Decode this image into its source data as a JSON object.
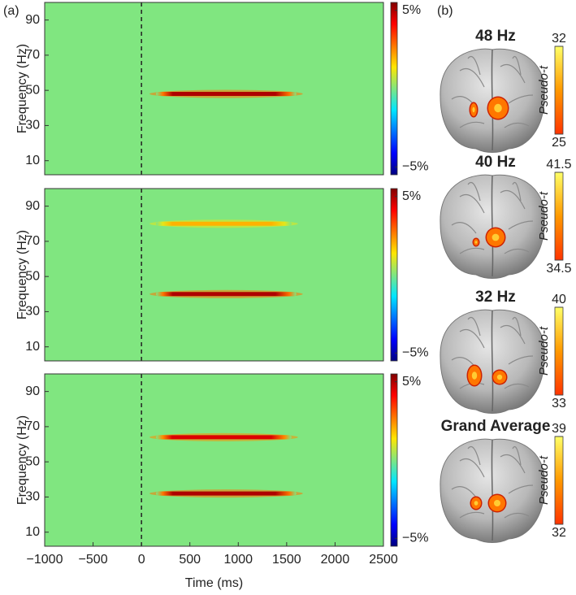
{
  "panel_a_label": "(a)",
  "panel_b_label": "(b)",
  "chart_data": [
    {
      "type": "heatmap",
      "ylabel": "Frequency (Hz)",
      "xlim": [
        -1000,
        2500
      ],
      "ylim": [
        2,
        100
      ],
      "yticks": [
        10,
        30,
        50,
        70,
        90
      ],
      "event_time": 0,
      "clim": [
        -5.5,
        5.5
      ],
      "cticks": [
        {
          "value": 5,
          "label": "5%"
        },
        {
          "value": -5,
          "label": "−5%"
        }
      ],
      "bands": [
        {
          "frequency": 48,
          "start": 150,
          "end": 1600,
          "value": 5
        }
      ]
    },
    {
      "type": "heatmap",
      "ylabel": "Frequency (Hz)",
      "xlim": [
        -1000,
        2500
      ],
      "ylim": [
        2,
        100
      ],
      "yticks": [
        10,
        30,
        50,
        70,
        90
      ],
      "event_time": 0,
      "clim": [
        -5.5,
        5.5
      ],
      "cticks": [
        {
          "value": 5,
          "label": "5%"
        },
        {
          "value": -5,
          "label": "−5%"
        }
      ],
      "bands": [
        {
          "frequency": 80,
          "start": 150,
          "end": 1550,
          "value": 2
        },
        {
          "frequency": 40,
          "start": 150,
          "end": 1600,
          "value": 5
        }
      ]
    },
    {
      "type": "heatmap",
      "ylabel": "Frequency (Hz)",
      "xlabel": "Time (ms)",
      "xlim": [
        -1000,
        2500
      ],
      "ylim": [
        2,
        100
      ],
      "yticks": [
        10,
        30,
        50,
        70,
        90
      ],
      "xticks": [
        {
          "value": -1000,
          "label": "−1000"
        },
        {
          "value": -500,
          "label": "−500"
        },
        0,
        500,
        1000,
        1500,
        2000,
        2500
      ],
      "event_time": 0,
      "clim": [
        -5.5,
        5.5
      ],
      "cticks": [
        {
          "value": 5,
          "label": "5%"
        },
        {
          "value": -5,
          "label": "−5%"
        }
      ],
      "bands": [
        {
          "frequency": 64,
          "start": 150,
          "end": 1550,
          "value": 4.5
        },
        {
          "frequency": 32,
          "start": 150,
          "end": 1600,
          "value": 5
        }
      ]
    }
  ],
  "brain_panels": [
    {
      "title": "48 Hz",
      "colorbar_label": "Pseudo-t",
      "clim": [
        25,
        32
      ]
    },
    {
      "title": "40 Hz",
      "colorbar_label": "Pseudo-t",
      "clim": [
        34.5,
        41.5
      ]
    },
    {
      "title": "32 Hz",
      "colorbar_label": "Pseudo-t",
      "clim": [
        33,
        40
      ]
    },
    {
      "title": "Grand Average",
      "colorbar_label": "Pseudo-t",
      "clim": [
        32,
        39
      ]
    }
  ]
}
